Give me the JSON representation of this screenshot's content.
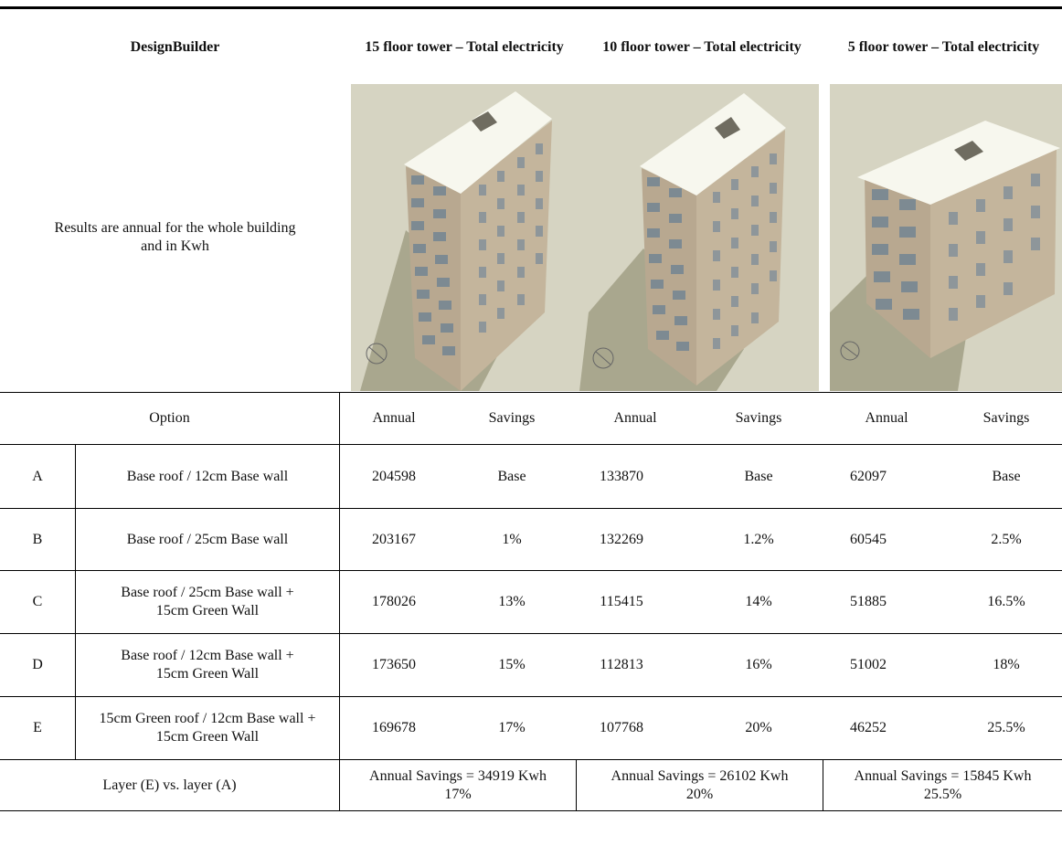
{
  "header": {
    "tool": "DesignBuilder",
    "towers": [
      "15 floor tower – Total electricity",
      "10 floor tower – Total electricity",
      "5 floor tower – Total electricity"
    ]
  },
  "note": "Results are annual for the whole building and in Kwh",
  "columns": {
    "option": "Option",
    "annual": "Annual",
    "savings": "Savings"
  },
  "rows": [
    {
      "id": "A",
      "desc": "Base roof / 12cm Base wall",
      "v": [
        "204598",
        "Base",
        "133870",
        "Base",
        "62097",
        "Base"
      ]
    },
    {
      "id": "B",
      "desc": "Base roof /  25cm Base wall",
      "v": [
        "203167",
        "1%",
        "132269",
        "1.2%",
        "60545",
        "2.5%"
      ]
    },
    {
      "id": "C",
      "desc": "Base roof / 25cm Base wall + 15cm Green Wall",
      "v": [
        "178026",
        "13%",
        "115415",
        "14%",
        "51885",
        "16.5%"
      ]
    },
    {
      "id": "D",
      "desc": "Base roof / 12cm Base wall + 15cm Green Wall",
      "v": [
        "173650",
        "15%",
        "112813",
        "16%",
        "51002",
        "18%"
      ]
    },
    {
      "id": "E",
      "desc": "15cm Green roof / 12cm Base wall + 15cm Green Wall",
      "v": [
        "169678",
        "17%",
        "107768",
        "20%",
        "46252",
        "25.5%"
      ]
    }
  ],
  "summary": {
    "label": "Layer (E) vs. layer (A)",
    "values": [
      "Annual Savings = 34919 Kwh  17%",
      "Annual Savings = 26102 Kwh  20%",
      "Annual Savings = 15845 Kwh  25.5%"
    ]
  },
  "colors": {
    "background": "#d6d4c2",
    "roof": "#f7f7ee",
    "facade": "#b8a890",
    "shadow": "#a9a78e",
    "window": "#7d8a92"
  }
}
